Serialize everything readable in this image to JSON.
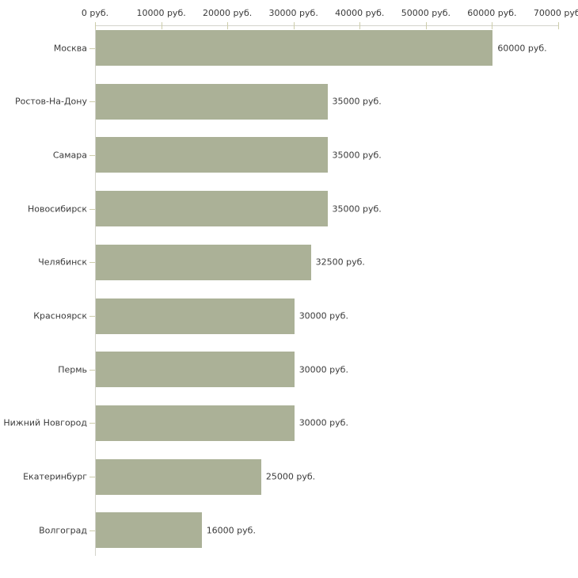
{
  "chart_data": {
    "type": "bar",
    "orientation": "horizontal",
    "title": "",
    "xlabel": "",
    "ylabel": "",
    "xlim": [
      0,
      70000
    ],
    "grid": false,
    "legend": null,
    "unit_suffix": " руб.",
    "categories": [
      "Москва",
      "Ростов-На-Дону",
      "Самара",
      "Новосибирск",
      "Челябинск",
      "Красноярск",
      "Пермь",
      "Нижний Новгород",
      "Екатеринбург",
      "Волгоград"
    ],
    "values": [
      60000,
      35000,
      35000,
      35000,
      32500,
      30000,
      30000,
      30000,
      25000,
      16000
    ],
    "value_labels": [
      "60000 руб.",
      "35000 руб.",
      "35000 руб.",
      "35000 руб.",
      "32500 руб.",
      "30000 руб.",
      "30000 руб.",
      "30000 руб.",
      "25000 руб.",
      "16000 руб."
    ],
    "x_tick_values": [
      0,
      10000,
      20000,
      30000,
      40000,
      50000,
      60000,
      70000
    ],
    "x_tick_labels": [
      "0 руб.",
      "10000 руб.",
      "20000 руб.",
      "30000 руб.",
      "40000 руб.",
      "50000 руб.",
      "60000 руб.",
      "70000 руб."
    ]
  },
  "colors": {
    "bar_fill": "#abb197",
    "axis_line": "#d3d3cb",
    "tick": "#cdcdab",
    "text": "#3a3a3a",
    "background": "#ffffff"
  }
}
